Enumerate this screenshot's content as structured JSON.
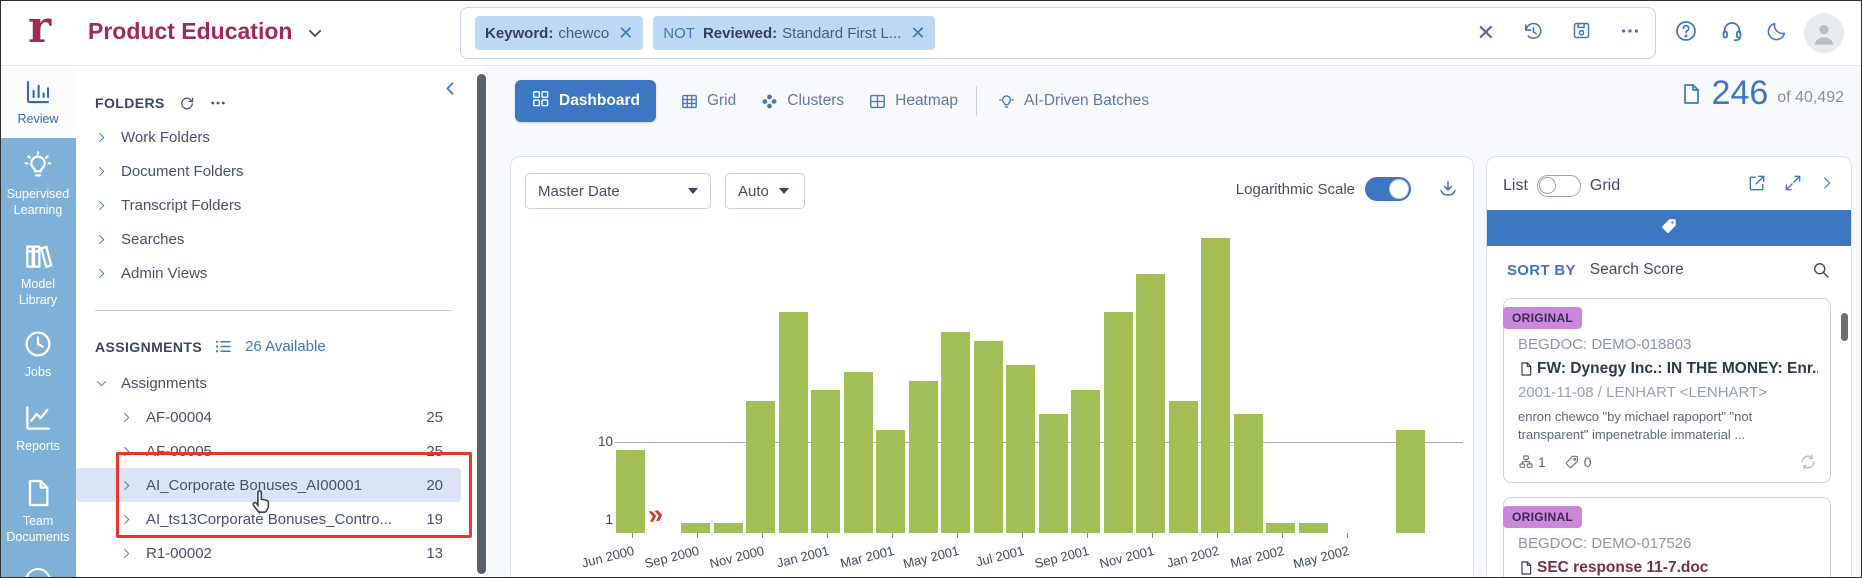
{
  "topbar": {
    "logo": "r",
    "workspace": "Product Education",
    "chips": [
      {
        "label": "Keyword:",
        "value": "chewco"
      },
      {
        "prefix": "NOT",
        "label": "Reviewed:",
        "value": "Standard First L..."
      }
    ]
  },
  "sidebar": {
    "items": [
      {
        "label": "Review",
        "icon": "review",
        "active": true
      },
      {
        "label": "Supervised Learning",
        "icon": "bulb"
      },
      {
        "label": "Model Library",
        "icon": "books"
      },
      {
        "label": "Jobs",
        "icon": "clock"
      },
      {
        "label": "Reports",
        "icon": "chart-line"
      },
      {
        "label": "Team Documents",
        "icon": "page"
      }
    ]
  },
  "folders_panel": {
    "title": "FOLDERS",
    "items": [
      "Work Folders",
      "Document Folders",
      "Transcript Folders",
      "Searches",
      "Admin Views"
    ],
    "assignments": {
      "title": "ASSIGNMENTS",
      "available": "26 Available",
      "root": "Assignments",
      "items": [
        {
          "name": "AF-00004",
          "count": "25"
        },
        {
          "name": "AF-00005",
          "count": "25"
        },
        {
          "name": "AI_Corporate Bonuses_AI00001",
          "count": "20",
          "selected": true
        },
        {
          "name": "AI_ts13Corporate Bonuses_Contro...",
          "count": "19"
        },
        {
          "name": "R1-00002",
          "count": "13"
        }
      ]
    }
  },
  "tabs": [
    {
      "label": "Dashboard",
      "icon": "dashboard",
      "active": true
    },
    {
      "label": "Grid",
      "icon": "grid"
    },
    {
      "label": "Clusters",
      "icon": "clusters"
    },
    {
      "label": "Heatmap",
      "icon": "heatmap"
    },
    {
      "label": "AI-Driven Batches",
      "icon": "bulb-sm",
      "divider_before": true
    }
  ],
  "doc_count": {
    "value": "246",
    "of": "of 40,492"
  },
  "chart_controls": {
    "field": "Master Date",
    "interval": "Auto",
    "log_label": "Logarithmic Scale",
    "log_on": true
  },
  "chart_data": {
    "type": "bar",
    "x_field": "Master Date",
    "n_slots": 26,
    "values": [
      3,
      0,
      1,
      1,
      6,
      21,
      7,
      9,
      4,
      8,
      16,
      14,
      10,
      5,
      7,
      21,
      36,
      6,
      60,
      5,
      1,
      1,
      0,
      0,
      4,
      0
    ],
    "x_tick_labels": [
      "Jun 2000",
      "Sep 2000",
      "Nov 2000",
      "Jan 2001",
      "Mar 2001",
      "May 2001",
      "Jul 2001",
      "Sep 2001",
      "Nov 2001",
      "Jan 2002",
      "Mar 2002",
      "May 2002"
    ],
    "label_slots": [
      0,
      2,
      4,
      6,
      8,
      10,
      12,
      14,
      16,
      18,
      20,
      22
    ],
    "y_scale": "log",
    "y_ticks": [
      1,
      10
    ],
    "bar_color": "#a2bf55",
    "grid": true,
    "total_documents": 246
  },
  "right_panel": {
    "list_label": "List",
    "grid_label": "Grid",
    "sort_by": "SORT BY",
    "sort_value": "Search Score",
    "cards": [
      {
        "badge": "ORIGINAL",
        "begdoc": "BEGDOC: DEMO-018803",
        "title": "FW: Dynegy Inc.: IN THE MONEY: Enr...",
        "meta": "2001-11-08 / LENHART <LENHART>",
        "snippet": "enron chewco \"by michael rapoport\" \"not transparent\" impenetrable immaterial ...",
        "family_count": "1",
        "tag_count": "0"
      },
      {
        "badge": "ORIGINAL",
        "begdoc": "BEGDOC: DEMO-017526",
        "title": "SEC response 11-7.doc",
        "flagged": true
      }
    ]
  }
}
